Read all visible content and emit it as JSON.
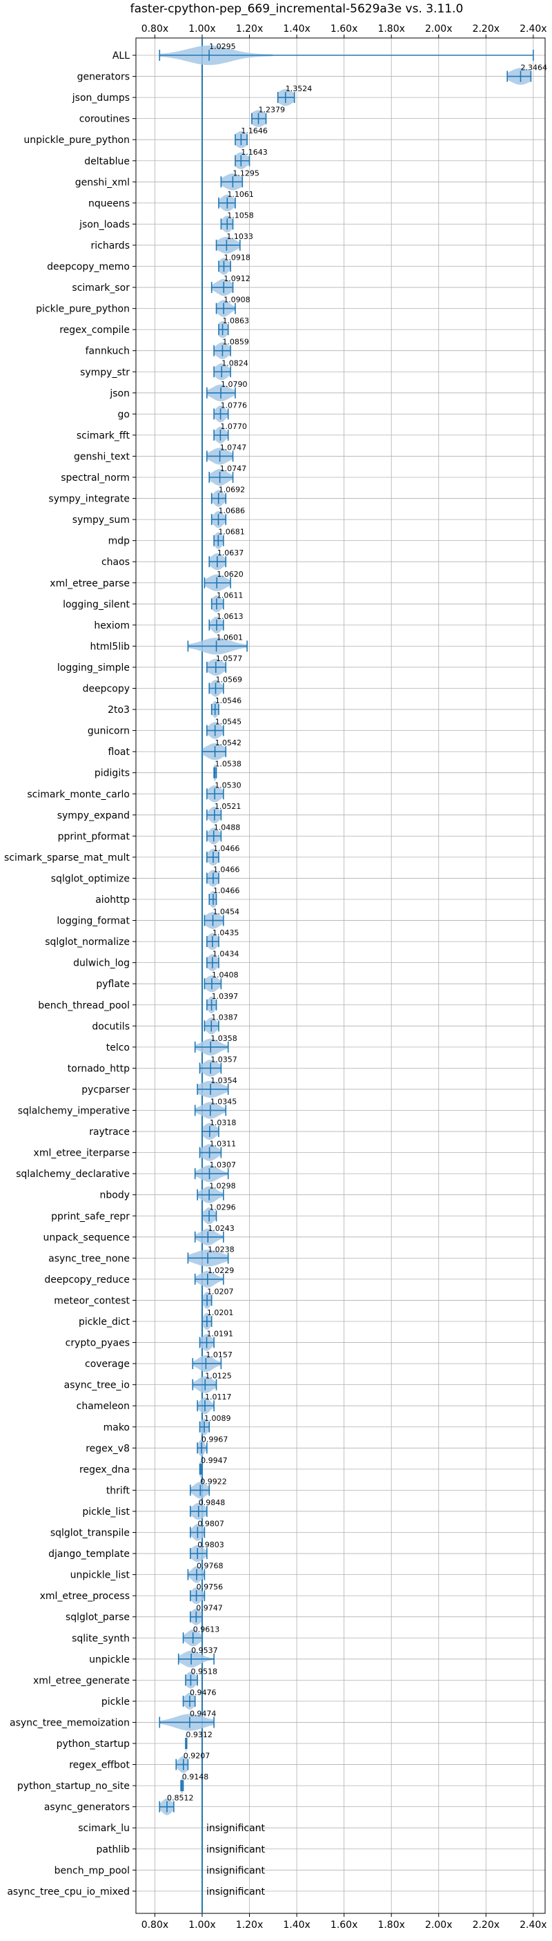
{
  "chart_data": {
    "type": "violin",
    "title": "faster-cpython-pep_669_incremental-5629a3e vs. 3.11.0",
    "xlim": [
      0.72,
      2.45
    ],
    "reference_line": 1.0,
    "x_ticks": [
      0.8,
      1.0,
      1.2,
      1.4,
      1.6,
      1.8,
      2.0,
      2.2,
      2.4
    ],
    "x_tick_labels": [
      "0.80x",
      "1.00x",
      "1.20x",
      "1.40x",
      "1.60x",
      "1.80x",
      "2.00x",
      "2.20x",
      "2.40x"
    ],
    "grid": true,
    "colors": {
      "violin": "#a6c8e6",
      "errorbar": "#1f77b4",
      "reference": "#1f77b4",
      "grid": "#b0b0b0"
    },
    "benchmarks": [
      {
        "name": "ALL",
        "label": "1.0295",
        "value": 1.0295,
        "min": 0.82,
        "max": 2.4,
        "spread": 0.09
      },
      {
        "name": "generators",
        "label": "2.3464",
        "value": 2.3464,
        "min": 2.29,
        "max": 2.39,
        "spread": 0.04
      },
      {
        "name": "json_dumps",
        "label": "1.3524",
        "value": 1.3524,
        "min": 1.32,
        "max": 1.39,
        "spread": 0.03
      },
      {
        "name": "coroutines",
        "label": "1.2379",
        "value": 1.2379,
        "min": 1.21,
        "max": 1.27,
        "spread": 0.03
      },
      {
        "name": "unpickle_pure_python",
        "label": "1.1646",
        "value": 1.1646,
        "min": 1.14,
        "max": 1.19,
        "spread": 0.025
      },
      {
        "name": "deltablue",
        "label": "1.1643",
        "value": 1.1643,
        "min": 1.14,
        "max": 1.2,
        "spread": 0.025
      },
      {
        "name": "genshi_xml",
        "label": "1.1295",
        "value": 1.1295,
        "min": 1.08,
        "max": 1.17,
        "spread": 0.035
      },
      {
        "name": "nqueens",
        "label": "1.1061",
        "value": 1.1061,
        "min": 1.07,
        "max": 1.14,
        "spread": 0.025
      },
      {
        "name": "json_loads",
        "label": "1.1058",
        "value": 1.1058,
        "min": 1.08,
        "max": 1.13,
        "spread": 0.02
      },
      {
        "name": "richards",
        "label": "1.1033",
        "value": 1.1033,
        "min": 1.06,
        "max": 1.16,
        "spread": 0.035
      },
      {
        "name": "deepcopy_memo",
        "label": "1.0918",
        "value": 1.0918,
        "min": 1.07,
        "max": 1.12,
        "spread": 0.02
      },
      {
        "name": "scimark_sor",
        "label": "1.0912",
        "value": 1.0912,
        "min": 1.04,
        "max": 1.13,
        "spread": 0.03
      },
      {
        "name": "pickle_pure_python",
        "label": "1.0908",
        "value": 1.0908,
        "min": 1.06,
        "max": 1.14,
        "spread": 0.025
      },
      {
        "name": "regex_compile",
        "label": "1.0863",
        "value": 1.0863,
        "min": 1.07,
        "max": 1.11,
        "spread": 0.02
      },
      {
        "name": "fannkuch",
        "label": "1.0859",
        "value": 1.0859,
        "min": 1.05,
        "max": 1.12,
        "spread": 0.025
      },
      {
        "name": "sympy_str",
        "label": "1.0824",
        "value": 1.0824,
        "min": 1.05,
        "max": 1.12,
        "spread": 0.025
      },
      {
        "name": "json",
        "label": "1.0790",
        "value": 1.079,
        "min": 1.02,
        "max": 1.14,
        "spread": 0.035
      },
      {
        "name": "go",
        "label": "1.0776",
        "value": 1.0776,
        "min": 1.05,
        "max": 1.11,
        "spread": 0.02
      },
      {
        "name": "scimark_fft",
        "label": "1.0770",
        "value": 1.077,
        "min": 1.05,
        "max": 1.11,
        "spread": 0.02
      },
      {
        "name": "genshi_text",
        "label": "1.0747",
        "value": 1.0747,
        "min": 1.02,
        "max": 1.13,
        "spread": 0.035
      },
      {
        "name": "spectral_norm",
        "label": "1.0747",
        "value": 1.0747,
        "min": 1.03,
        "max": 1.13,
        "spread": 0.03
      },
      {
        "name": "sympy_integrate",
        "label": "1.0692",
        "value": 1.0692,
        "min": 1.04,
        "max": 1.1,
        "spread": 0.02
      },
      {
        "name": "sympy_sum",
        "label": "1.0686",
        "value": 1.0686,
        "min": 1.04,
        "max": 1.1,
        "spread": 0.02
      },
      {
        "name": "mdp",
        "label": "1.0681",
        "value": 1.0681,
        "min": 1.05,
        "max": 1.09,
        "spread": 0.015
      },
      {
        "name": "chaos",
        "label": "1.0637",
        "value": 1.0637,
        "min": 1.03,
        "max": 1.1,
        "spread": 0.025
      },
      {
        "name": "xml_etree_parse",
        "label": "1.0620",
        "value": 1.062,
        "min": 1.01,
        "max": 1.12,
        "spread": 0.035
      },
      {
        "name": "logging_silent",
        "label": "1.0611",
        "value": 1.0611,
        "min": 1.04,
        "max": 1.09,
        "spread": 0.02
      },
      {
        "name": "hexiom",
        "label": "1.0613",
        "value": 1.0613,
        "min": 1.03,
        "max": 1.09,
        "spread": 0.02
      },
      {
        "name": "html5lib",
        "label": "1.0601",
        "value": 1.0601,
        "min": 0.94,
        "max": 1.19,
        "spread": 0.06
      },
      {
        "name": "logging_simple",
        "label": "1.0577",
        "value": 1.0577,
        "min": 1.02,
        "max": 1.1,
        "spread": 0.03
      },
      {
        "name": "deepcopy",
        "label": "1.0569",
        "value": 1.0569,
        "min": 1.03,
        "max": 1.09,
        "spread": 0.02
      },
      {
        "name": "2to3",
        "label": "1.0546",
        "value": 1.0546,
        "min": 1.04,
        "max": 1.07,
        "spread": 0.012
      },
      {
        "name": "gunicorn",
        "label": "1.0545",
        "value": 1.0545,
        "min": 1.02,
        "max": 1.09,
        "spread": 0.025
      },
      {
        "name": "float",
        "label": "1.0542",
        "value": 1.0542,
        "min": 1.0,
        "max": 1.1,
        "spread": 0.035
      },
      {
        "name": "pidigits",
        "label": "1.0538",
        "value": 1.0538,
        "min": 1.05,
        "max": 1.06,
        "spread": 0.006
      },
      {
        "name": "scimark_monte_carlo",
        "label": "1.0530",
        "value": 1.053,
        "min": 1.02,
        "max": 1.09,
        "spread": 0.025
      },
      {
        "name": "sympy_expand",
        "label": "1.0521",
        "value": 1.0521,
        "min": 1.02,
        "max": 1.08,
        "spread": 0.02
      },
      {
        "name": "pprint_pformat",
        "label": "1.0488",
        "value": 1.0488,
        "min": 1.02,
        "max": 1.08,
        "spread": 0.02
      },
      {
        "name": "scimark_sparse_mat_mult",
        "label": "1.0466",
        "value": 1.0466,
        "min": 1.02,
        "max": 1.07,
        "spread": 0.02
      },
      {
        "name": "sqlglot_optimize",
        "label": "1.0466",
        "value": 1.0466,
        "min": 1.02,
        "max": 1.07,
        "spread": 0.02
      },
      {
        "name": "aiohttp",
        "label": "1.0466",
        "value": 1.0466,
        "min": 1.03,
        "max": 1.06,
        "spread": 0.015
      },
      {
        "name": "logging_format",
        "label": "1.0454",
        "value": 1.0454,
        "min": 1.01,
        "max": 1.09,
        "spread": 0.03
      },
      {
        "name": "sqlglot_normalize",
        "label": "1.0435",
        "value": 1.0435,
        "min": 1.02,
        "max": 1.07,
        "spread": 0.02
      },
      {
        "name": "dulwich_log",
        "label": "1.0434",
        "value": 1.0434,
        "min": 1.02,
        "max": 1.07,
        "spread": 0.02
      },
      {
        "name": "pyflate",
        "label": "1.0408",
        "value": 1.0408,
        "min": 1.01,
        "max": 1.08,
        "spread": 0.025
      },
      {
        "name": "bench_thread_pool",
        "label": "1.0397",
        "value": 1.0397,
        "min": 1.02,
        "max": 1.06,
        "spread": 0.015
      },
      {
        "name": "docutils",
        "label": "1.0387",
        "value": 1.0387,
        "min": 1.01,
        "max": 1.07,
        "spread": 0.02
      },
      {
        "name": "telco",
        "label": "1.0358",
        "value": 1.0358,
        "min": 0.97,
        "max": 1.11,
        "spread": 0.035
      },
      {
        "name": "tornado_http",
        "label": "1.0357",
        "value": 1.0357,
        "min": 0.99,
        "max": 1.08,
        "spread": 0.03
      },
      {
        "name": "pycparser",
        "label": "1.0354",
        "value": 1.0354,
        "min": 0.98,
        "max": 1.11,
        "spread": 0.045
      },
      {
        "name": "sqlalchemy_imperative",
        "label": "1.0345",
        "value": 1.0345,
        "min": 0.97,
        "max": 1.1,
        "spread": 0.035
      },
      {
        "name": "raytrace",
        "label": "1.0318",
        "value": 1.0318,
        "min": 1.0,
        "max": 1.07,
        "spread": 0.025
      },
      {
        "name": "xml_etree_iterparse",
        "label": "1.0311",
        "value": 1.0311,
        "min": 0.99,
        "max": 1.08,
        "spread": 0.03
      },
      {
        "name": "sqlalchemy_declarative",
        "label": "1.0307",
        "value": 1.0307,
        "min": 0.97,
        "max": 1.11,
        "spread": 0.035
      },
      {
        "name": "nbody",
        "label": "1.0298",
        "value": 1.0298,
        "min": 0.98,
        "max": 1.09,
        "spread": 0.03
      },
      {
        "name": "pprint_safe_repr",
        "label": "1.0296",
        "value": 1.0296,
        "min": 1.0,
        "max": 1.06,
        "spread": 0.02
      },
      {
        "name": "unpack_sequence",
        "label": "1.0243",
        "value": 1.0243,
        "min": 0.97,
        "max": 1.09,
        "spread": 0.03
      },
      {
        "name": "async_tree_none",
        "label": "1.0238",
        "value": 1.0238,
        "min": 0.94,
        "max": 1.11,
        "spread": 0.055
      },
      {
        "name": "deepcopy_reduce",
        "label": "1.0229",
        "value": 1.0229,
        "min": 0.97,
        "max": 1.09,
        "spread": 0.03
      },
      {
        "name": "meteor_contest",
        "label": "1.0207",
        "value": 1.0207,
        "min": 1.0,
        "max": 1.04,
        "spread": 0.015
      },
      {
        "name": "pickle_dict",
        "label": "1.0201",
        "value": 1.0201,
        "min": 1.0,
        "max": 1.04,
        "spread": 0.015
      },
      {
        "name": "crypto_pyaes",
        "label": "1.0191",
        "value": 1.0191,
        "min": 0.99,
        "max": 1.05,
        "spread": 0.02
      },
      {
        "name": "coverage",
        "label": "1.0157",
        "value": 1.0157,
        "min": 0.96,
        "max": 1.08,
        "spread": 0.03
      },
      {
        "name": "async_tree_io",
        "label": "1.0125",
        "value": 1.0125,
        "min": 0.96,
        "max": 1.06,
        "spread": 0.03
      },
      {
        "name": "chameleon",
        "label": "1.0117",
        "value": 1.0117,
        "min": 0.98,
        "max": 1.05,
        "spread": 0.02
      },
      {
        "name": "mako",
        "label": "1.0089",
        "value": 1.0089,
        "min": 0.99,
        "max": 1.03,
        "spread": 0.015
      },
      {
        "name": "regex_v8",
        "label": "0.9967",
        "value": 0.9967,
        "min": 0.98,
        "max": 1.02,
        "spread": 0.012
      },
      {
        "name": "regex_dna",
        "label": "0.9947",
        "value": 0.9947,
        "min": 0.99,
        "max": 1.0,
        "spread": 0.008
      },
      {
        "name": "thrift",
        "label": "0.9922",
        "value": 0.9922,
        "min": 0.95,
        "max": 1.03,
        "spread": 0.025
      },
      {
        "name": "pickle_list",
        "label": "0.9848",
        "value": 0.9848,
        "min": 0.95,
        "max": 1.02,
        "spread": 0.025
      },
      {
        "name": "sqlglot_transpile",
        "label": "0.9807",
        "value": 0.9807,
        "min": 0.95,
        "max": 1.01,
        "spread": 0.02
      },
      {
        "name": "django_template",
        "label": "0.9803",
        "value": 0.9803,
        "min": 0.95,
        "max": 1.02,
        "spread": 0.025
      },
      {
        "name": "unpickle_list",
        "label": "0.9768",
        "value": 0.9768,
        "min": 0.94,
        "max": 1.01,
        "spread": 0.02
      },
      {
        "name": "xml_etree_process",
        "label": "0.9756",
        "value": 0.9756,
        "min": 0.95,
        "max": 1.01,
        "spread": 0.02
      },
      {
        "name": "sqlglot_parse",
        "label": "0.9747",
        "value": 0.9747,
        "min": 0.95,
        "max": 1.0,
        "spread": 0.02
      },
      {
        "name": "sqlite_synth",
        "label": "0.9613",
        "value": 0.9613,
        "min": 0.92,
        "max": 1.0,
        "spread": 0.025
      },
      {
        "name": "unpickle",
        "label": "0.9537",
        "value": 0.9537,
        "min": 0.9,
        "max": 1.05,
        "spread": 0.035
      },
      {
        "name": "xml_etree_generate",
        "label": "0.9518",
        "value": 0.9518,
        "min": 0.93,
        "max": 0.98,
        "spread": 0.02
      },
      {
        "name": "pickle",
        "label": "0.9476",
        "value": 0.9476,
        "min": 0.92,
        "max": 0.97,
        "spread": 0.02
      },
      {
        "name": "async_tree_memoization",
        "label": "0.9474",
        "value": 0.9474,
        "min": 0.82,
        "max": 1.05,
        "spread": 0.06
      },
      {
        "name": "python_startup",
        "label": "0.9312",
        "value": 0.9312,
        "min": 0.93,
        "max": 0.935,
        "spread": 0.004
      },
      {
        "name": "regex_effbot",
        "label": "0.9207",
        "value": 0.9207,
        "min": 0.89,
        "max": 0.94,
        "spread": 0.02
      },
      {
        "name": "python_startup_no_site",
        "label": "0.9148",
        "value": 0.9148,
        "min": 0.91,
        "max": 0.92,
        "spread": 0.004
      },
      {
        "name": "async_generators",
        "label": "0.8512",
        "value": 0.8512,
        "min": 0.82,
        "max": 0.88,
        "spread": 0.02
      },
      {
        "name": "scimark_lu",
        "label": "insignificant",
        "value": null
      },
      {
        "name": "pathlib",
        "label": "insignificant",
        "value": null
      },
      {
        "name": "bench_mp_pool",
        "label": "insignificant",
        "value": null
      },
      {
        "name": "async_tree_cpu_io_mixed",
        "label": "insignificant",
        "value": null
      }
    ]
  }
}
